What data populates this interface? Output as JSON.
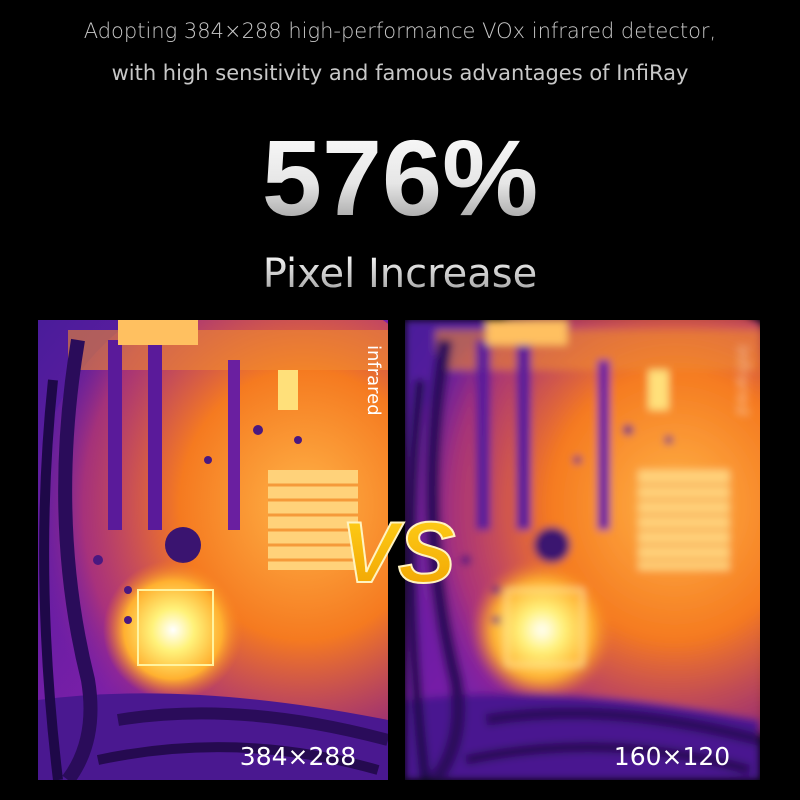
{
  "header": {
    "line1": "Adopting 384×288 high-performance VOx infrared detector,",
    "line2": "with high sensitivity and famous advantages of InfiRay"
  },
  "headline": {
    "value": "576%",
    "caption": "Pixel Increase"
  },
  "comparison": {
    "divider": "VS",
    "left": {
      "watermark": "infrared",
      "resolution": "384×288"
    },
    "right": {
      "watermark": "infrared",
      "resolution": "160×120"
    }
  }
}
